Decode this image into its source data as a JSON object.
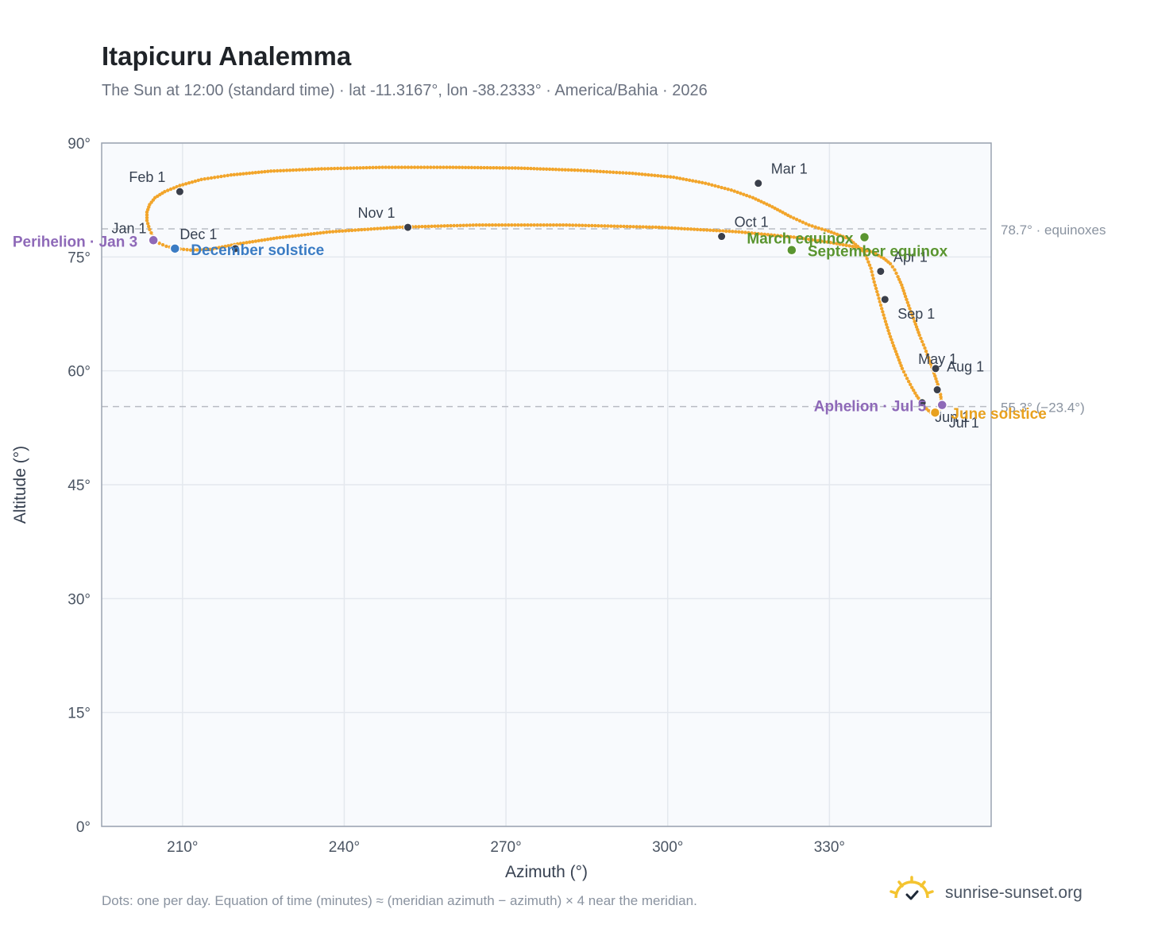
{
  "header": {
    "title": "Itapicuru Analemma",
    "subtitle": "The Sun at 12:00 (standard time) · lat -11.3167°, lon -38.2333° · America/Bahia · 2026"
  },
  "footer": {
    "note": "Dots: one per day. Equation of time (minutes) ≈ (meridian azimuth − azimuth) × 4 near the meridian.",
    "brand": "sunrise-sunset.org",
    "brand_icon": "sun-logo-icon"
  },
  "colors": {
    "curve": "#f2a52b",
    "month_marker": "#3a3f4b",
    "equinox": "#5a9530",
    "june_solstice": "#e8a11f",
    "december_solstice": "#3b7cc4",
    "apsis": "#8e69b8",
    "plot_bg": "#f8fafd",
    "grid": "#e4e8ee",
    "reference_line": "#b8bcc3"
  },
  "chart_data": {
    "type": "scatter",
    "xlabel": "Azimuth (°)",
    "ylabel": "Altitude (°)",
    "xlim": [
      195,
      360
    ],
    "ylim": [
      0,
      90
    ],
    "xticks": [
      210,
      240,
      270,
      300,
      330
    ],
    "xtick_labels": [
      "210°",
      "240°",
      "270°",
      "300°",
      "330°"
    ],
    "yticks": [
      0,
      15,
      30,
      45,
      60,
      75,
      90
    ],
    "ytick_labels": [
      "0°",
      "15°",
      "30°",
      "45°",
      "60°",
      "75°",
      "90°"
    ],
    "grid": true,
    "series": [
      {
        "x": [
          204.8,
          203.9,
          203.4,
          203.4,
          203.9,
          204.9,
          206.7,
          209.5,
          213.5,
          219.0,
          226.4,
          235.8,
          247.1,
          259.6,
          272.3,
          283.9,
          293.5,
          301.1,
          307.0,
          311.8,
          315.8,
          319.4,
          322.8,
          326.2,
          329.8,
          333.6,
          336.5,
          337.7,
          338.3,
          339.0,
          339.7,
          340.4,
          341.1,
          341.9,
          342.7,
          343.5,
          344.4,
          345.3,
          346.2,
          347.1,
          348.0,
          348.8,
          349.6,
          350.2,
          350.6,
          350.8,
          350.6,
          350.1,
          349.4,
          348.6,
          347.7,
          346.7,
          345.8,
          344.9,
          344.1,
          343.4,
          342.7,
          342.1,
          341.3,
          340.1,
          338.1,
          334.9,
          330.2,
          323.4,
          313.2,
          298.4,
          281.2,
          264.5,
          249.7,
          237.3,
          227.5,
          220.2,
          215.1,
          211.5,
          208.9,
          207.0,
          205.7,
          204.8
        ],
        "y": [
          77.3,
          78.6,
          79.8,
          80.9,
          81.9,
          82.8,
          83.6,
          84.4,
          85.2,
          85.8,
          86.3,
          86.6,
          86.8,
          86.8,
          86.7,
          86.4,
          86.0,
          85.5,
          84.7,
          83.8,
          82.8,
          81.6,
          80.3,
          79.2,
          78.4,
          77.4,
          75.6,
          73.5,
          71.7,
          70.0,
          68.2,
          66.5,
          64.9,
          63.3,
          61.8,
          60.3,
          59.0,
          57.8,
          56.7,
          55.8,
          55.0,
          54.5,
          54.3,
          54.5,
          55.0,
          55.8,
          56.9,
          58.2,
          59.7,
          61.3,
          63.0,
          64.7,
          66.5,
          68.2,
          69.8,
          71.3,
          72.4,
          73.3,
          74.1,
          74.8,
          75.6,
          76.3,
          76.9,
          77.6,
          78.3,
          78.9,
          79.2,
          79.2,
          78.9,
          78.3,
          77.5,
          76.7,
          76.0,
          75.9,
          76.1,
          76.4,
          76.8,
          77.3
        ]
      }
    ],
    "month_markers": [
      {
        "label": "Jan 1",
        "x": 204.8,
        "y": 77.3
      },
      {
        "label": "Feb 1",
        "x": 209.5,
        "y": 83.6
      },
      {
        "label": "Mar 1",
        "x": 316.8,
        "y": 84.7
      },
      {
        "label": "Apr 1",
        "x": 339.5,
        "y": 73.1
      },
      {
        "label": "May 1",
        "x": 349.7,
        "y": 60.3
      },
      {
        "label": "Jun 1",
        "x": 347.2,
        "y": 55.8
      },
      {
        "label": "Jul 1",
        "x": 349.8,
        "y": 54.4
      },
      {
        "label": "Aug 1",
        "x": 350.0,
        "y": 57.5
      },
      {
        "label": "Sep 1",
        "x": 340.3,
        "y": 69.4
      },
      {
        "label": "Oct 1",
        "x": 310.0,
        "y": 77.7
      },
      {
        "label": "Nov 1",
        "x": 251.8,
        "y": 78.9
      },
      {
        "label": "Dec 1",
        "x": 219.8,
        "y": 76.1
      }
    ],
    "special_points": [
      {
        "label": "March equinox",
        "x": 336.5,
        "y": 77.6,
        "kind": "equinox"
      },
      {
        "label": "September equinox",
        "x": 323.0,
        "y": 75.9,
        "kind": "equinox"
      },
      {
        "label": "June solstice",
        "x": 349.6,
        "y": 54.5,
        "kind": "june_solstice"
      },
      {
        "label": "December solstice",
        "x": 208.6,
        "y": 76.1,
        "kind": "december_solstice"
      },
      {
        "label": "Perihelion · Jan 3",
        "x": 204.6,
        "y": 77.2,
        "kind": "apsis"
      },
      {
        "label": "Aphelion · Jul 5",
        "x": 350.9,
        "y": 55.5,
        "kind": "apsis"
      }
    ],
    "reference_lines": [
      {
        "y": 78.7,
        "label": "78.7° · equinoxes"
      },
      {
        "y": 55.3,
        "label": "55.3° (−23.4°)"
      }
    ]
  }
}
